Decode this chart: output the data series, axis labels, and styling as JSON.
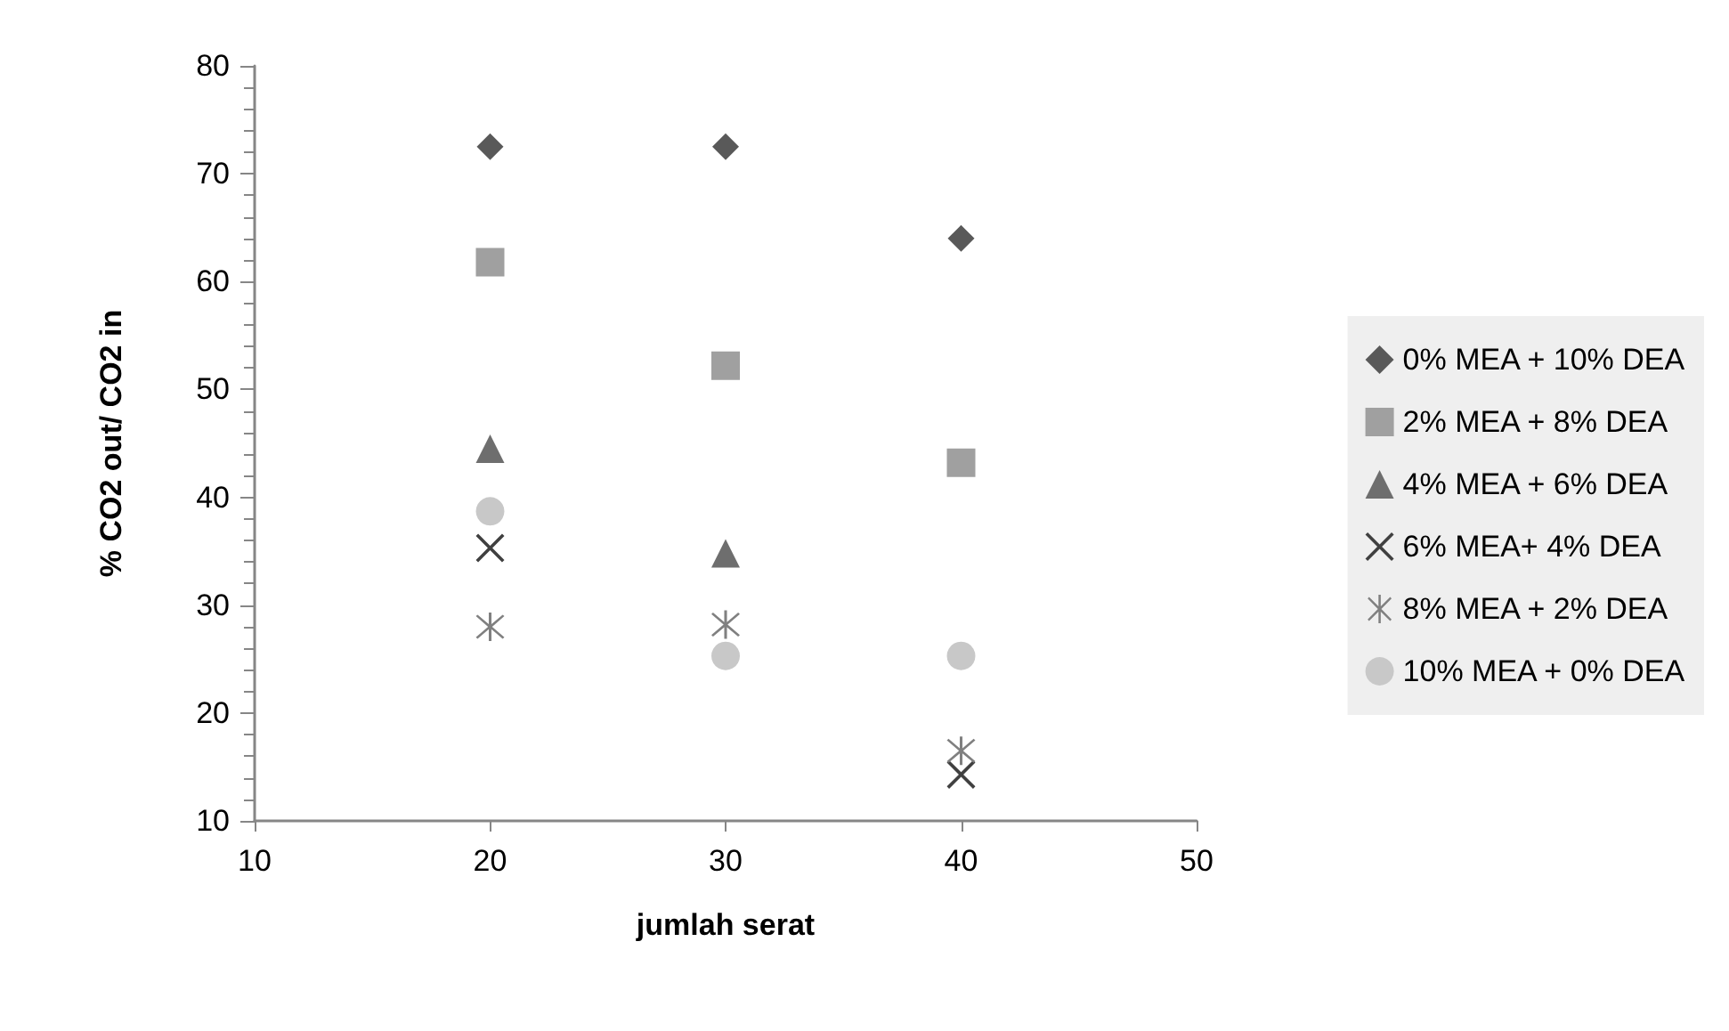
{
  "chart_data": {
    "type": "scatter",
    "xlabel": "jumlah serat",
    "ylabel": "% CO2 out/ CO2 in",
    "xlim": [
      10,
      50
    ],
    "xticks": [
      10,
      20,
      30,
      40,
      50
    ],
    "ylim": [
      10,
      80
    ],
    "yticks": [
      10,
      20,
      30,
      40,
      50,
      60,
      70,
      80
    ],
    "x": [
      20,
      30,
      40
    ],
    "grid": false,
    "legend": "right",
    "series": [
      {
        "name": "0% MEA + 10% DEA",
        "color": "#595959",
        "marker": "diamond",
        "values": [
          72.5,
          72.5,
          64
        ]
      },
      {
        "name": "2% MEA + 8% DEA",
        "color": "#a0a0a0",
        "marker": "square",
        "values": [
          61.8,
          52.2,
          43.2
        ]
      },
      {
        "name": "4% MEA + 6% DEA",
        "color": "#6e6e6e",
        "marker": "triangle",
        "values": [
          44.5,
          34.8,
          null
        ]
      },
      {
        "name": "6% MEA+ 4% DEA",
        "color": "#404040",
        "marker": "cross",
        "values": [
          35.3,
          null,
          14.3
        ]
      },
      {
        "name": "8% MEA + 2% DEA",
        "color": "#808080",
        "marker": "star",
        "values": [
          28,
          28.2,
          16.5
        ]
      },
      {
        "name": "10% MEA + 0% DEA",
        "color": "#c8c8c8",
        "marker": "circle",
        "values": [
          38.7,
          25.3,
          25.3
        ]
      }
    ]
  }
}
